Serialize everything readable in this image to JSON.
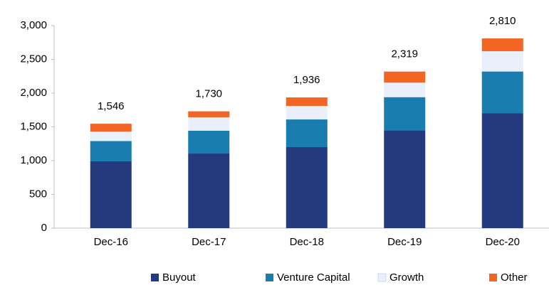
{
  "chart_data": {
    "type": "stacked_bar",
    "categories": [
      "Dec-16",
      "Dec-17",
      "Dec-18",
      "Dec-19",
      "Dec-20"
    ],
    "series": [
      {
        "name": "Buyout",
        "color": "#233a7f",
        "values": [
          990,
          1105,
          1200,
          1450,
          1700
        ]
      },
      {
        "name": "Venture Capital",
        "color": "#1a7db0",
        "values": [
          300,
          337,
          410,
          490,
          620
        ]
      },
      {
        "name": "Growth",
        "color": "#e9f0fc",
        "values": [
          140,
          200,
          200,
          215,
          300
        ]
      },
      {
        "name": "Other",
        "color": "#f26522",
        "values": [
          116,
          88,
          126,
          164,
          190
        ]
      }
    ],
    "total_labels": [
      "1,546",
      "1,730",
      "1,936",
      "2,319",
      "2,810"
    ],
    "ylim": [
      0,
      3000
    ],
    "yticks": [
      0,
      500,
      {
        "value": 1000,
        "label": "1,000"
      },
      {
        "value": 1500,
        "label": "1,500"
      },
      {
        "value": 2000,
        "label": "2,000"
      },
      {
        "value": 2500,
        "label": "2,500"
      },
      {
        "value": 3000,
        "label": "3,000"
      }
    ],
    "legend": "bottom"
  }
}
